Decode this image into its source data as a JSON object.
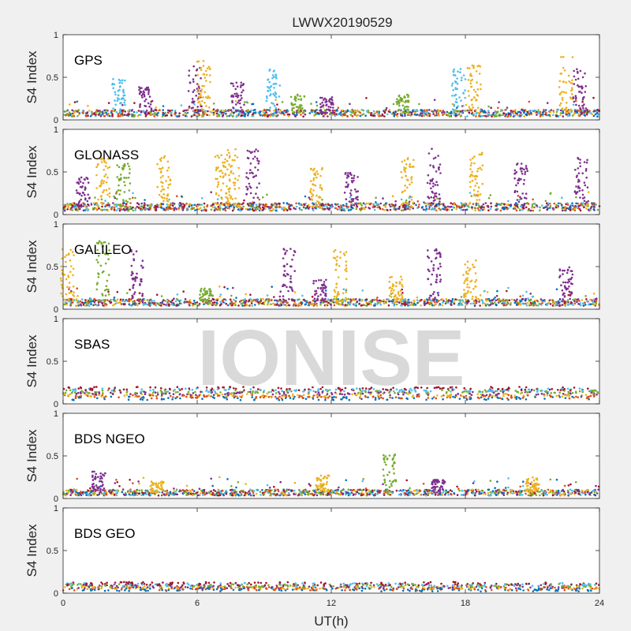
{
  "chart_data": {
    "type": "scatter",
    "title": "LWWX20190529",
    "xlabel": "UT(h)",
    "ylabel": "S4 Index",
    "watermark": "IONISE",
    "xlim": [
      0,
      24
    ],
    "ylim": [
      0,
      1
    ],
    "xticks": [
      "0",
      "6",
      "12",
      "18",
      "24"
    ],
    "yticks": [
      "0",
      "0.5",
      "1"
    ],
    "colors": [
      "#0072bd",
      "#d95319",
      "#edb120",
      "#7e2f8e",
      "#77ac30",
      "#4dbeee",
      "#a2142f"
    ],
    "panels": [
      {
        "label": "GPS",
        "baseline": 0.08,
        "bursts": [
          [
            2.5,
            0.48,
            5
          ],
          [
            3.7,
            0.4,
            3
          ],
          [
            5.9,
            0.65,
            3
          ],
          [
            6.3,
            0.7,
            2
          ],
          [
            7.8,
            0.45,
            3
          ],
          [
            9.4,
            0.6,
            5
          ],
          [
            10.5,
            0.3,
            4
          ],
          [
            11.8,
            0.28,
            3
          ],
          [
            15.2,
            0.3,
            4
          ],
          [
            17.7,
            0.6,
            5
          ],
          [
            18.4,
            0.65,
            2
          ],
          [
            22.5,
            0.75,
            2
          ],
          [
            23.1,
            0.6,
            3
          ]
        ]
      },
      {
        "label": "GLONASS",
        "baseline": 0.09,
        "bursts": [
          [
            0.9,
            0.45,
            3
          ],
          [
            1.8,
            0.7,
            2
          ],
          [
            2.7,
            0.6,
            4
          ],
          [
            4.5,
            0.7,
            2
          ],
          [
            7.1,
            0.72,
            2
          ],
          [
            7.6,
            0.82,
            2
          ],
          [
            8.5,
            0.78,
            3
          ],
          [
            11.3,
            0.55,
            2
          ],
          [
            12.9,
            0.5,
            3
          ],
          [
            15.4,
            0.68,
            2
          ],
          [
            16.6,
            0.78,
            3
          ],
          [
            18.5,
            0.75,
            2
          ],
          [
            20.5,
            0.62,
            3
          ],
          [
            23.2,
            0.68,
            3
          ]
        ]
      },
      {
        "label": "GALILEO",
        "baseline": 0.08,
        "bursts": [
          [
            0.2,
            0.75,
            2
          ],
          [
            1.8,
            0.8,
            4
          ],
          [
            3.3,
            0.7,
            3
          ],
          [
            6.4,
            0.25,
            4
          ],
          [
            10.1,
            0.72,
            3
          ],
          [
            11.5,
            0.35,
            3
          ],
          [
            12.4,
            0.7,
            2
          ],
          [
            14.9,
            0.4,
            2
          ],
          [
            16.6,
            0.75,
            3
          ],
          [
            18.2,
            0.58,
            2
          ],
          [
            22.5,
            0.5,
            3
          ]
        ]
      },
      {
        "label": "SBAS",
        "baseline": 0.16,
        "bursts": []
      },
      {
        "label": "BDS NGEO",
        "baseline": 0.07,
        "bursts": [
          [
            1.6,
            0.32,
            3
          ],
          [
            4.2,
            0.2,
            2
          ],
          [
            11.6,
            0.28,
            2
          ],
          [
            14.6,
            0.52,
            4
          ],
          [
            16.8,
            0.22,
            3
          ],
          [
            21.0,
            0.25,
            2
          ]
        ]
      },
      {
        "label": "BDS GEO",
        "baseline": 0.1,
        "bursts": []
      }
    ]
  }
}
